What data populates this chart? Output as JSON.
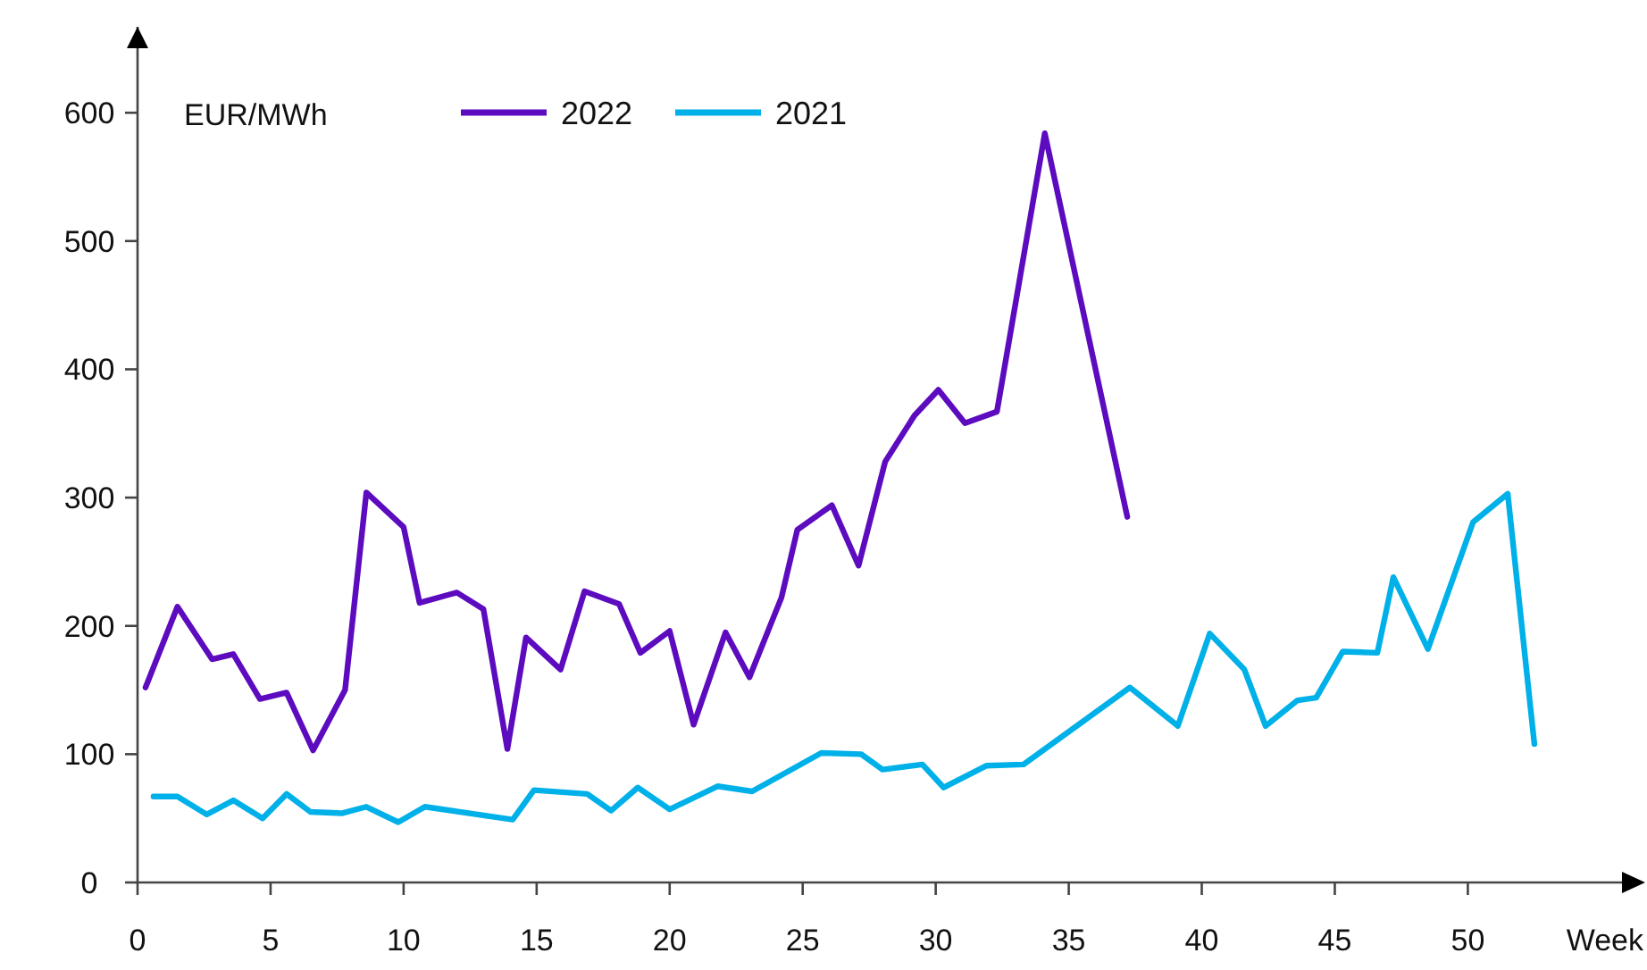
{
  "chart_data": {
    "type": "line",
    "ylabel": "EUR/MWh",
    "xlabel": "Week",
    "xlim": [
      0,
      56.6
    ],
    "xticks": [
      0,
      5,
      10,
      15,
      20,
      25,
      30,
      35,
      40,
      45,
      50
    ],
    "ylim": [
      0,
      667
    ],
    "yticks": [
      0,
      100,
      200,
      300,
      400,
      500,
      600
    ],
    "grid": false,
    "legend": "top",
    "marker": "none",
    "line_style": "solid",
    "series": [
      {
        "name": "2022",
        "color": "#5c0bbf",
        "x": [
          0.3,
          1.5,
          2.8,
          3.6,
          4.6,
          5.6,
          6.6,
          7.8,
          8.6,
          10.0,
          10.6,
          12.0,
          13.0,
          13.9,
          14.6,
          15.9,
          16.8,
          18.1,
          18.9,
          20.0,
          20.9,
          22.1,
          23.0,
          24.2,
          24.8,
          26.1,
          27.1,
          28.1,
          29.2,
          30.1,
          31.1,
          32.3,
          34.1,
          37.2
        ],
        "values": [
          152,
          215,
          174,
          178,
          143,
          148,
          103,
          150,
          304,
          277,
          218,
          226,
          213,
          104,
          191,
          166,
          227,
          217,
          179,
          196,
          123,
          195,
          160,
          222,
          275,
          294,
          247,
          328,
          364,
          384,
          358,
          367,
          584,
          285
        ]
      },
      {
        "name": "2021",
        "color": "#00b0e8",
        "x": [
          0.6,
          1.5,
          2.6,
          3.6,
          4.7,
          5.6,
          6.5,
          7.7,
          8.6,
          9.8,
          10.8,
          14.1,
          14.9,
          16.9,
          17.8,
          18.8,
          20.0,
          21.8,
          23.1,
          25.7,
          27.2,
          28.0,
          29.5,
          30.3,
          31.9,
          33.3,
          37.3,
          39.1,
          40.3,
          41.6,
          42.4,
          43.6,
          44.3,
          45.3,
          46.6,
          47.2,
          48.5,
          50.2,
          51.5,
          52.5
        ],
        "values": [
          67,
          67,
          53,
          64,
          50,
          69,
          55,
          54,
          59,
          47,
          59,
          49,
          72,
          69,
          56,
          74,
          57,
          75,
          71,
          101,
          100,
          88,
          92,
          74,
          91,
          92,
          152,
          122,
          194,
          166,
          122,
          142,
          144,
          180,
          179,
          238,
          182,
          281,
          303,
          108
        ]
      }
    ]
  }
}
